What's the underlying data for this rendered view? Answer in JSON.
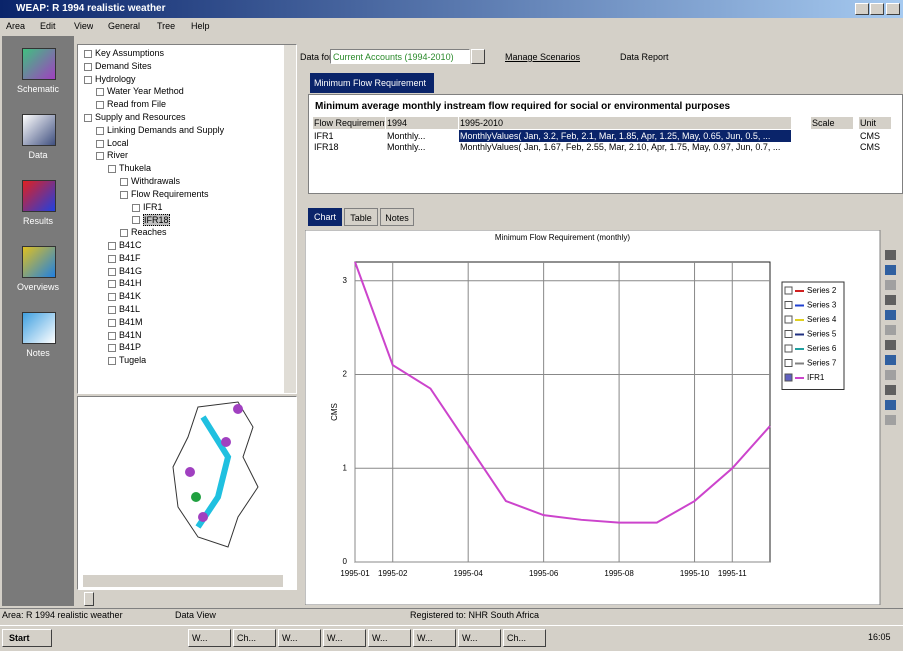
{
  "window": {
    "title": "WEAP: R 1994 realistic weather"
  },
  "menu": [
    "Area",
    "Edit",
    "View",
    "General",
    "Tree",
    "Help"
  ],
  "sidebar": [
    "Schematic",
    "Data",
    "Results",
    "Overviews",
    "Notes"
  ],
  "tree": [
    {
      "label": "Key Assumptions"
    },
    {
      "label": "Demand Sites"
    },
    {
      "label": "Hydrology",
      "children": [
        {
          "label": "Water Year Method"
        },
        {
          "label": "Read from File"
        }
      ]
    },
    {
      "label": "Supply and Resources",
      "children": [
        {
          "label": "Linking Demands and Supply"
        },
        {
          "label": "Local"
        },
        {
          "label": "River",
          "children": [
            {
              "label": "Thukela",
              "children": [
                {
                  "label": "Withdrawals"
                },
                {
                  "label": "Flow Requirements",
                  "children": [
                    {
                      "label": "IFR1"
                    },
                    {
                      "label": "IFR18",
                      "selected": true
                    }
                  ]
                },
                {
                  "label": "Reaches"
                }
              ]
            },
            {
              "label": "B41C"
            },
            {
              "label": "B41F"
            },
            {
              "label": "B41G"
            },
            {
              "label": "B41H"
            },
            {
              "label": "B41K"
            },
            {
              "label": "B41L"
            },
            {
              "label": "B41M"
            },
            {
              "label": "B41N"
            },
            {
              "label": "B41P"
            },
            {
              "label": "Tugela"
            }
          ]
        }
      ]
    }
  ],
  "toolbar": {
    "data_for_label": "Data for:",
    "scenario": "Current Accounts (1994-2010)",
    "manage": "Manage Scenarios",
    "report": "Data Report"
  },
  "tab": "Minimum Flow Requirement",
  "description": "Minimum average monthly instream flow required for social or environmental purposes",
  "table": {
    "headers": {
      "name": "Flow Requirement",
      "first": "1994",
      "rest": "1995-2010",
      "scale": "Scale",
      "unit": "Unit"
    },
    "rows": [
      {
        "name": "IFR1",
        "first": "Monthly...",
        "rest": "MonthlyValues( Jan, 3.2, Feb, 2.1, Mar, 1.85, Apr, 1.25, May, 0.65, Jun, 0.5, ...",
        "unit": "CMS"
      },
      {
        "name": "IFR18",
        "first": "Monthly...",
        "rest": "MonthlyValues( Jan, 1.67, Feb, 2.55, Mar, 2.10, Apr, 1.75, May, 0.97, Jun, 0.7, ...",
        "unit": "CMS"
      }
    ]
  },
  "view_tabs": [
    "Chart",
    "Table",
    "Notes"
  ],
  "chart_data": {
    "type": "line",
    "title": "Minimum Flow Requirement (monthly)",
    "y_label": "CMS",
    "categories": [
      "1995-01",
      "1995-02",
      null,
      "1995-04",
      null,
      "1995-06",
      null,
      "1995-08",
      null,
      "1995-10",
      "1995-11",
      null
    ],
    "series": [
      {
        "name": "IFR1",
        "color": "#cc44cc",
        "values": [
          3.2,
          2.1,
          1.85,
          1.25,
          0.65,
          0.5,
          0.45,
          0.42,
          0.42,
          0.65,
          1.0,
          1.45
        ]
      }
    ],
    "legend_items": [
      {
        "name": "Series 2",
        "color": "#d02020"
      },
      {
        "name": "Series 3",
        "color": "#2040d0"
      },
      {
        "name": "Series 4",
        "color": "#e0d020"
      },
      {
        "name": "Series 5",
        "color": "#203080"
      },
      {
        "name": "Series 6",
        "color": "#20a0a0"
      },
      {
        "name": "Series 7",
        "color": "#808080"
      }
    ],
    "ylim": [
      0,
      3.2
    ],
    "yticks": [
      0,
      1,
      2,
      3
    ],
    "grid": true
  },
  "status_bar": [
    "Area: R 1994 realistic weather",
    "Data View",
    "Registered to: NHR South Africa"
  ],
  "taskbar": {
    "start": "Start",
    "buttons": [
      "W...",
      "Ch...",
      "W...",
      "W...",
      "W...",
      "W...",
      "W...",
      "Ch..."
    ],
    "clock": "16:05"
  }
}
